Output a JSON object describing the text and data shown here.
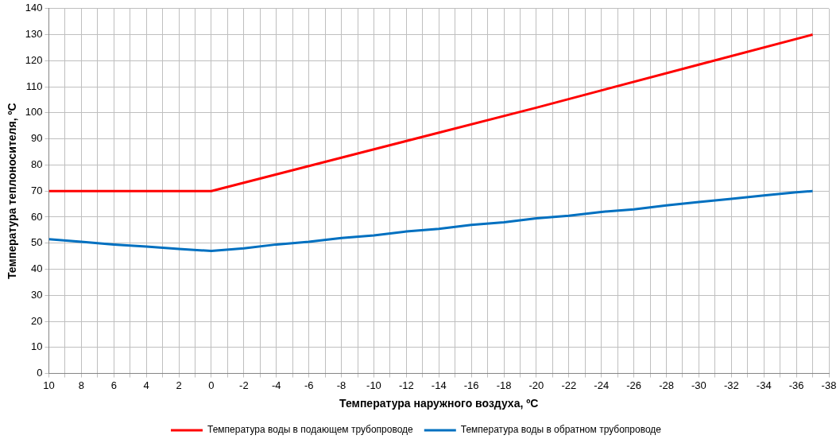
{
  "chart_data": {
    "type": "line",
    "xlabel": "Температура наружного воздуха, ºC",
    "ylabel": "Температура теплоносителя, ºC",
    "xlim": [
      10,
      -38
    ],
    "xticks": [
      10,
      {
        "value": 9,
        "label": null
      },
      8,
      {
        "value": 7,
        "label": null
      },
      6,
      {
        "value": 5,
        "label": null
      },
      4,
      {
        "value": 3,
        "label": null
      },
      2,
      {
        "value": 1,
        "label": null
      },
      0,
      {
        "value": -1,
        "label": null
      },
      -2,
      {
        "value": -3,
        "label": null
      },
      -4,
      {
        "value": -5,
        "label": null
      },
      -6,
      {
        "value": -7,
        "label": null
      },
      -8,
      {
        "value": -9,
        "label": null
      },
      -10,
      {
        "value": -11,
        "label": null
      },
      -12,
      {
        "value": -13,
        "label": null
      },
      -14,
      {
        "value": -15,
        "label": null
      },
      -16,
      {
        "value": -17,
        "label": null
      },
      -18,
      {
        "value": -19,
        "label": null
      },
      -20,
      {
        "value": -21,
        "label": null
      },
      -22,
      {
        "value": -23,
        "label": null
      },
      -24,
      {
        "value": -25,
        "label": null
      },
      -26,
      {
        "value": -27,
        "label": null
      },
      -28,
      {
        "value": -29,
        "label": null
      },
      -30,
      {
        "value": -31,
        "label": null
      },
      -32,
      {
        "value": -33,
        "label": null
      },
      -34,
      {
        "value": -35,
        "label": null
      },
      -36,
      {
        "value": -37,
        "label": null
      },
      -38
    ],
    "ylim": [
      0,
      140
    ],
    "yticks": [
      0,
      10,
      20,
      30,
      40,
      50,
      60,
      70,
      80,
      90,
      100,
      110,
      120,
      130,
      140
    ],
    "grid": true,
    "legend": "bottom",
    "marker": "none",
    "line_style": "solid",
    "series": [
      {
        "name": "Температура воды в подающем трубопроводе",
        "color": "#ff0000",
        "x": [
          10,
          0,
          -10,
          -20,
          -30,
          -37
        ],
        "values": [
          70,
          70,
          86,
          102,
          118.5,
          130
        ]
      },
      {
        "name": "Температура воды в обратном трубопроводе",
        "color": "#0070c0",
        "x": [
          10,
          8,
          6,
          4,
          2,
          0,
          -2,
          -4,
          -6,
          -8,
          -10,
          -12,
          -14,
          -16,
          -18,
          -20,
          -22,
          -24,
          -26,
          -28,
          -30,
          -32,
          -34,
          -36,
          -37
        ],
        "values": [
          51.5,
          50.5,
          49.5,
          48.7,
          47.8,
          47,
          48,
          49.5,
          50.5,
          52,
          53,
          54.5,
          55.5,
          57,
          58,
          59.5,
          60.5,
          62,
          63,
          64.5,
          65.8,
          67,
          68.3,
          69.5,
          70
        ]
      }
    ]
  }
}
